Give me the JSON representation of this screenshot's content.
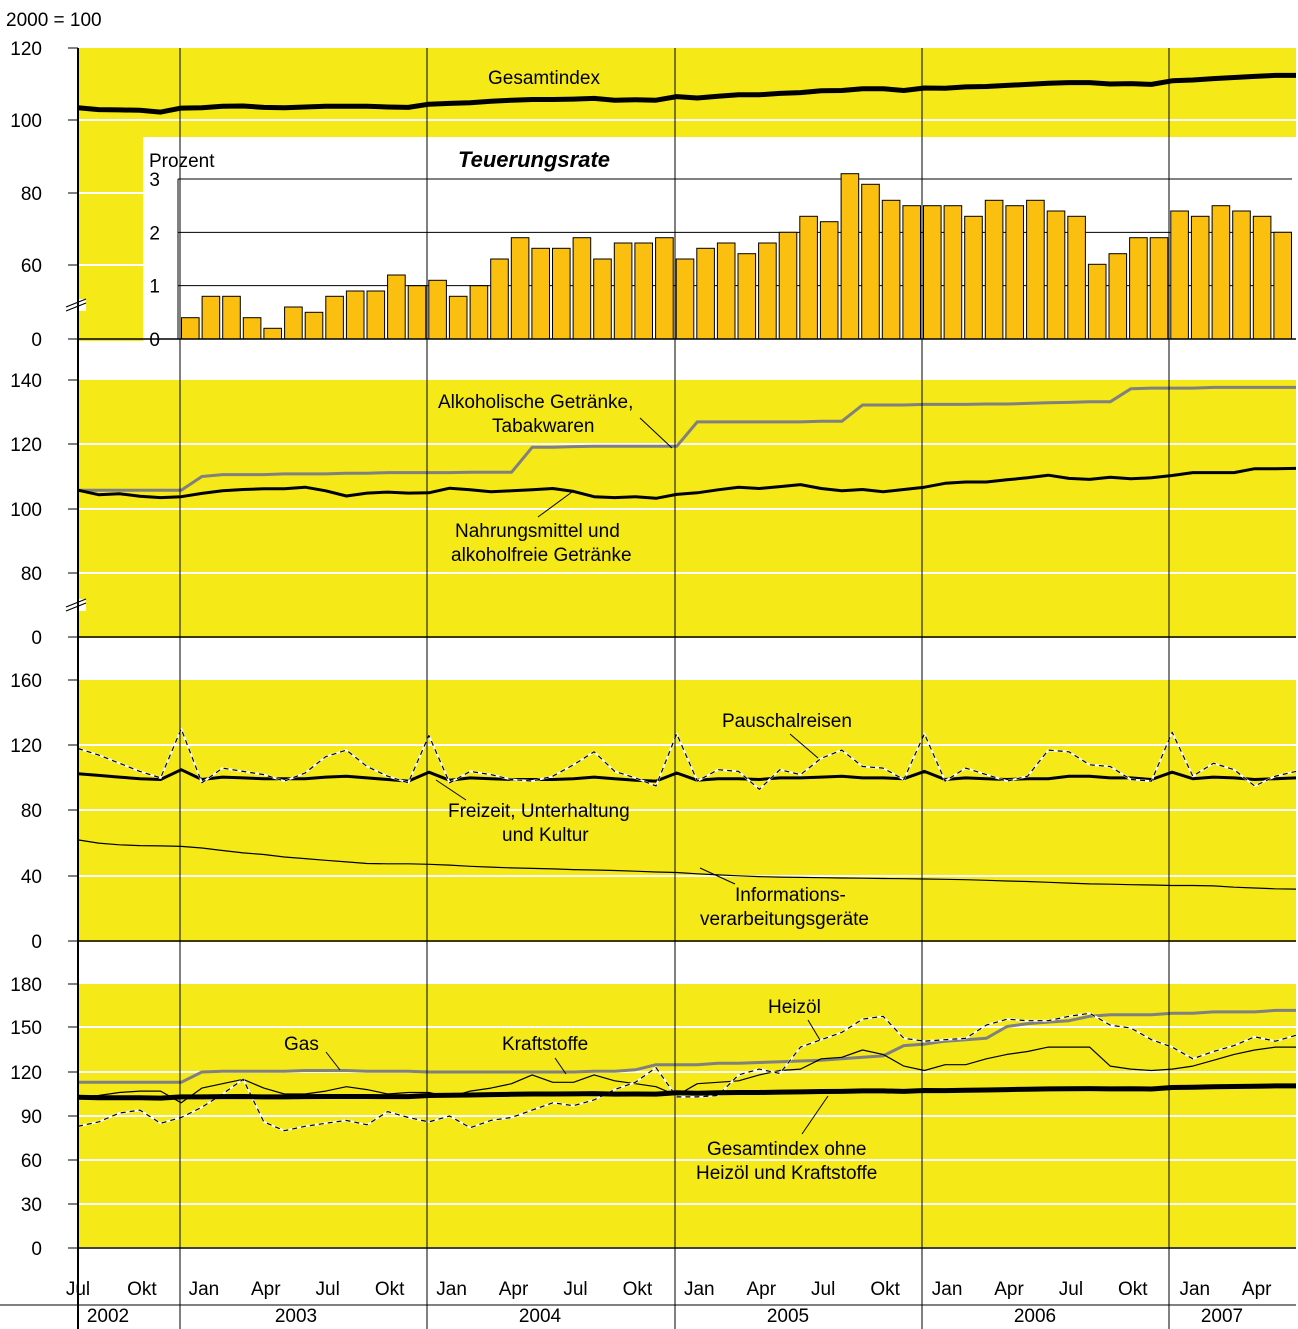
{
  "unit_label": "2000 = 100",
  "x_axis": {
    "month_ticks": [
      "Jul",
      "Okt",
      "Jan",
      "Apr",
      "Jul",
      "Okt",
      "Jan",
      "Apr",
      "Jul",
      "Okt",
      "Jan",
      "Apr",
      "Jul",
      "Okt",
      "Jan",
      "Apr",
      "Jul",
      "Okt",
      "Jan",
      "Apr"
    ],
    "years": [
      "2002",
      "2003",
      "2004",
      "2005",
      "2006",
      "2007"
    ]
  },
  "colors": {
    "panel_bg": "#f5e918",
    "bar_fill": "#fbbf10",
    "main_line": "#000000",
    "gray_line": "#808080",
    "grid": "#ffffff"
  },
  "panel1": {
    "yticks": [
      "120",
      "100",
      "80",
      "60",
      "0"
    ],
    "series_label": "Gesamtindex",
    "inset": {
      "ylabel": "Prozent",
      "title": "Teuerungsrate",
      "yticks": [
        "3",
        "2",
        "1",
        "0"
      ]
    }
  },
  "panel2": {
    "yticks": [
      "140",
      "120",
      "100",
      "80",
      "0"
    ],
    "label_alkohol": [
      "Alkoholische Getränke,",
      "Tabakwaren"
    ],
    "label_nahrung": [
      "Nahrungsmittel  und",
      "alkoholfreie Getränke"
    ]
  },
  "panel3": {
    "yticks": [
      "160",
      "120",
      "80",
      "40",
      "0"
    ],
    "label_pauschal": "Pauschalreisen",
    "label_freizeit": [
      "Freizeit, Unterhaltung",
      "und Kultur"
    ],
    "label_info": [
      "Informations-",
      "verarbeitungsgeräte"
    ]
  },
  "panel4": {
    "yticks": [
      "180",
      "150",
      "120",
      "90",
      "60",
      "30",
      "0"
    ],
    "label_gas": "Gas",
    "label_kraft": "Kraftstoffe",
    "label_heizoel": "Heizöl",
    "label_ohne": [
      "Gesamtindex ohne",
      "Heizöl und Kraftstoffe"
    ]
  },
  "chart_data": [
    {
      "type": "line",
      "title": "",
      "x_start": "2002-07",
      "x_end": "2007-06",
      "ylim": [
        0,
        120
      ],
      "axis_break": true,
      "series": [
        {
          "name": "Gesamtindex",
          "values": [
            103.4,
            102.9,
            102.8,
            102.7,
            102.2,
            103.3,
            103.4,
            103.8,
            103.9,
            103.5,
            103.4,
            103.6,
            103.8,
            103.8,
            103.8,
            103.6,
            103.5,
            104.4,
            104.6,
            104.8,
            105.2,
            105.5,
            105.7,
            105.7,
            105.8,
            106.0,
            105.5,
            105.6,
            105.5,
            106.5,
            106.1,
            106.6,
            107.0,
            107.0,
            107.4,
            107.6,
            108.1,
            108.2,
            108.7,
            108.7,
            108.2,
            108.9,
            108.8,
            109.2,
            109.3,
            109.6,
            109.9,
            110.2,
            110.4,
            110.4,
            110.0,
            110.1,
            109.9,
            110.9,
            111.1,
            111.5,
            111.8,
            112.1,
            112.4,
            112.4
          ]
        }
      ]
    },
    {
      "type": "bar",
      "title": "Teuerungsrate",
      "ylabel": "Prozent",
      "ylim": [
        0,
        3
      ],
      "x_start": "2002-07",
      "values": [
        0.4,
        0.8,
        0.8,
        0.4,
        0.2,
        0.6,
        0.5,
        0.8,
        0.9,
        0.9,
        1.2,
        1.0,
        1.1,
        0.8,
        1.0,
        1.5,
        1.9,
        1.7,
        1.7,
        1.9,
        1.5,
        1.8,
        1.8,
        1.9,
        1.5,
        1.7,
        1.8,
        1.6,
        1.8,
        2.0,
        2.3,
        2.2,
        3.1,
        2.9,
        2.6,
        2.5,
        2.5,
        2.5,
        2.3,
        2.6,
        2.5,
        2.6,
        2.4,
        2.3,
        1.4,
        1.6,
        1.9,
        1.9,
        2.4,
        2.3,
        2.5,
        2.4,
        2.3,
        2.0
      ]
    },
    {
      "type": "line",
      "ylim": [
        0,
        140
      ],
      "axis_break": true,
      "series": [
        {
          "name": "Alkoholische Getränke, Tabakwaren",
          "values": [
            105.8,
            105.8,
            105.8,
            105.8,
            105.8,
            105.8,
            110.0,
            110.6,
            110.6,
            110.6,
            110.8,
            110.8,
            110.8,
            111.0,
            111.0,
            111.2,
            111.2,
            111.2,
            111.2,
            111.3,
            111.3,
            111.3,
            119.0,
            119.0,
            119.2,
            119.3,
            119.3,
            119.3,
            119.3,
            119.3,
            126.8,
            126.8,
            126.8,
            126.8,
            126.8,
            126.8,
            127.0,
            127.0,
            132.0,
            132.0,
            132.0,
            132.2,
            132.2,
            132.2,
            132.3,
            132.3,
            132.5,
            132.7,
            132.8,
            133.0,
            133.0,
            137.0,
            137.2,
            137.2,
            137.2,
            137.4,
            137.4,
            137.4,
            137.4,
            137.4
          ]
        },
        {
          "name": "Nahrungsmittel und alkoholfreie Getränke",
          "values": [
            105.8,
            104.4,
            104.7,
            103.9,
            103.5,
            103.8,
            104.8,
            105.6,
            106.0,
            106.2,
            106.2,
            106.7,
            105.6,
            104.0,
            104.9,
            105.2,
            104.9,
            105.0,
            106.4,
            105.9,
            105.3,
            105.6,
            105.9,
            106.3,
            105.4,
            103.8,
            103.5,
            103.8,
            103.3,
            104.5,
            105.0,
            105.9,
            106.7,
            106.3,
            106.9,
            107.5,
            106.3,
            105.6,
            106.0,
            105.3,
            106.0,
            106.7,
            107.9,
            108.3,
            108.3,
            109.0,
            109.6,
            110.4,
            109.4,
            109.1,
            109.8,
            109.3,
            109.6,
            110.3,
            111.2,
            111.2,
            111.2,
            112.4,
            112.4,
            112.5
          ]
        }
      ]
    },
    {
      "type": "line",
      "ylim": [
        0,
        160
      ],
      "series": [
        {
          "name": "Pauschalreisen",
          "values": [
            118,
            114,
            109,
            104,
            100,
            130,
            97,
            106,
            104,
            102,
            98,
            103,
            113,
            117,
            107,
            101,
            97,
            126,
            97,
            104,
            102,
            99,
            98,
            101,
            108,
            116,
            104,
            100,
            95,
            127,
            98,
            105,
            104,
            93,
            105,
            102,
            112,
            117,
            107,
            106,
            99,
            127,
            98,
            106,
            102,
            98,
            101,
            117,
            116,
            108,
            107,
            99,
            98,
            128,
            101,
            109,
            105,
            95,
            101,
            104
          ]
        },
        {
          "name": "Freizeit, Unterhaltung und Kultur",
          "values": [
            102.5,
            101.5,
            100.5,
            99.5,
            99,
            105,
            99,
            100.5,
            100,
            99.5,
            99.5,
            99.5,
            100.5,
            101,
            100,
            99,
            98,
            103.5,
            98.5,
            100,
            99.5,
            99,
            99,
            99,
            99.5,
            100.5,
            99.5,
            98.5,
            98,
            103,
            98.5,
            99.5,
            99.5,
            99,
            100,
            100,
            100.5,
            101,
            100,
            100,
            99.5,
            104,
            99,
            100,
            99.5,
            99,
            99.5,
            99.5,
            101,
            101,
            100,
            100,
            99,
            103.5,
            99.5,
            100.5,
            100,
            99,
            99.5,
            100
          ]
        },
        {
          "name": "Informationsverarbeitungsgeräte",
          "values": [
            62,
            60,
            59,
            58.5,
            58.3,
            58,
            57,
            55.5,
            54,
            53,
            51.5,
            50.5,
            49.5,
            48.5,
            47.5,
            47.3,
            47.3,
            47,
            46.5,
            45.8,
            45.3,
            44.8,
            44.5,
            44.2,
            43.8,
            43.5,
            43.2,
            42.8,
            42.3,
            42,
            41.2,
            40.5,
            40,
            39.5,
            39.2,
            39,
            38.8,
            38.6,
            38.5,
            38.3,
            38.2,
            38,
            37.8,
            37.6,
            37.2,
            36.8,
            36.5,
            36,
            35.5,
            35,
            34.8,
            34.5,
            34.3,
            34,
            34,
            33.8,
            33,
            32.5,
            32,
            31.8
          ]
        }
      ]
    },
    {
      "type": "line",
      "ylim": [
        0,
        180
      ],
      "series": [
        {
          "name": "Gas",
          "values": [
            113,
            113,
            113,
            113,
            113,
            113,
            120,
            120.5,
            120.5,
            120.5,
            120.5,
            121,
            121,
            121,
            120.5,
            120.5,
            120.5,
            120,
            120,
            120,
            120,
            120,
            120,
            120,
            120,
            120.5,
            120.5,
            121.5,
            125,
            125,
            125,
            126,
            126,
            126.5,
            127,
            127.5,
            128,
            129,
            130,
            131,
            138,
            139,
            141,
            142,
            143,
            151,
            153,
            154,
            155,
            158,
            159,
            159,
            159,
            160,
            160,
            161,
            161,
            161,
            162,
            162
          ]
        },
        {
          "name": "Kraftstoffe",
          "values": [
            103,
            104,
            106,
            107,
            107,
            99,
            109,
            112,
            115,
            109,
            105,
            105,
            107,
            110,
            108,
            105,
            106,
            106,
            103,
            107,
            109,
            112,
            118,
            113,
            113,
            118,
            114,
            112,
            110,
            104,
            112,
            113,
            114,
            118,
            121,
            122,
            129,
            130,
            135,
            132,
            124,
            121,
            125,
            125,
            129,
            132,
            134,
            137,
            137,
            137,
            124,
            122,
            121,
            122,
            124,
            128,
            132,
            135,
            137,
            137
          ]
        },
        {
          "name": "Heizöl",
          "values": [
            83,
            86,
            92,
            94,
            85,
            89,
            96,
            105,
            115,
            86,
            80,
            83,
            85,
            87,
            84,
            93,
            89,
            86,
            90,
            82,
            87,
            89,
            94,
            99,
            97,
            101,
            108,
            113,
            123,
            103,
            103,
            104,
            118,
            122,
            119,
            137,
            142,
            147,
            156,
            158,
            143,
            141,
            142,
            143,
            152,
            156,
            155,
            155,
            158,
            160,
            152,
            150,
            142,
            137,
            129,
            134,
            138,
            144,
            141,
            145
          ]
        },
        {
          "name": "Gesamtindex ohne Heizöl und Kraftstoffe",
          "values": [
            102.8,
            102.5,
            102.5,
            102.5,
            102.2,
            103.0,
            103.0,
            103.2,
            103.3,
            103.0,
            103.0,
            103.2,
            103.3,
            103.3,
            103.3,
            103.2,
            103.2,
            104.0,
            104.2,
            104.3,
            104.6,
            104.8,
            105.0,
            105.0,
            105.1,
            105.3,
            104.9,
            105.0,
            104.9,
            105.8,
            105.5,
            105.8,
            106.0,
            106.0,
            106.3,
            106.4,
            106.7,
            106.8,
            107.1,
            107.1,
            106.8,
            107.4,
            107.3,
            107.6,
            107.7,
            108.0,
            108.3,
            108.5,
            108.6,
            108.7,
            108.5,
            108.6,
            108.4,
            109.4,
            109.6,
            109.9,
            110.1,
            110.3,
            110.5,
            110.5
          ]
        }
      ]
    }
  ]
}
